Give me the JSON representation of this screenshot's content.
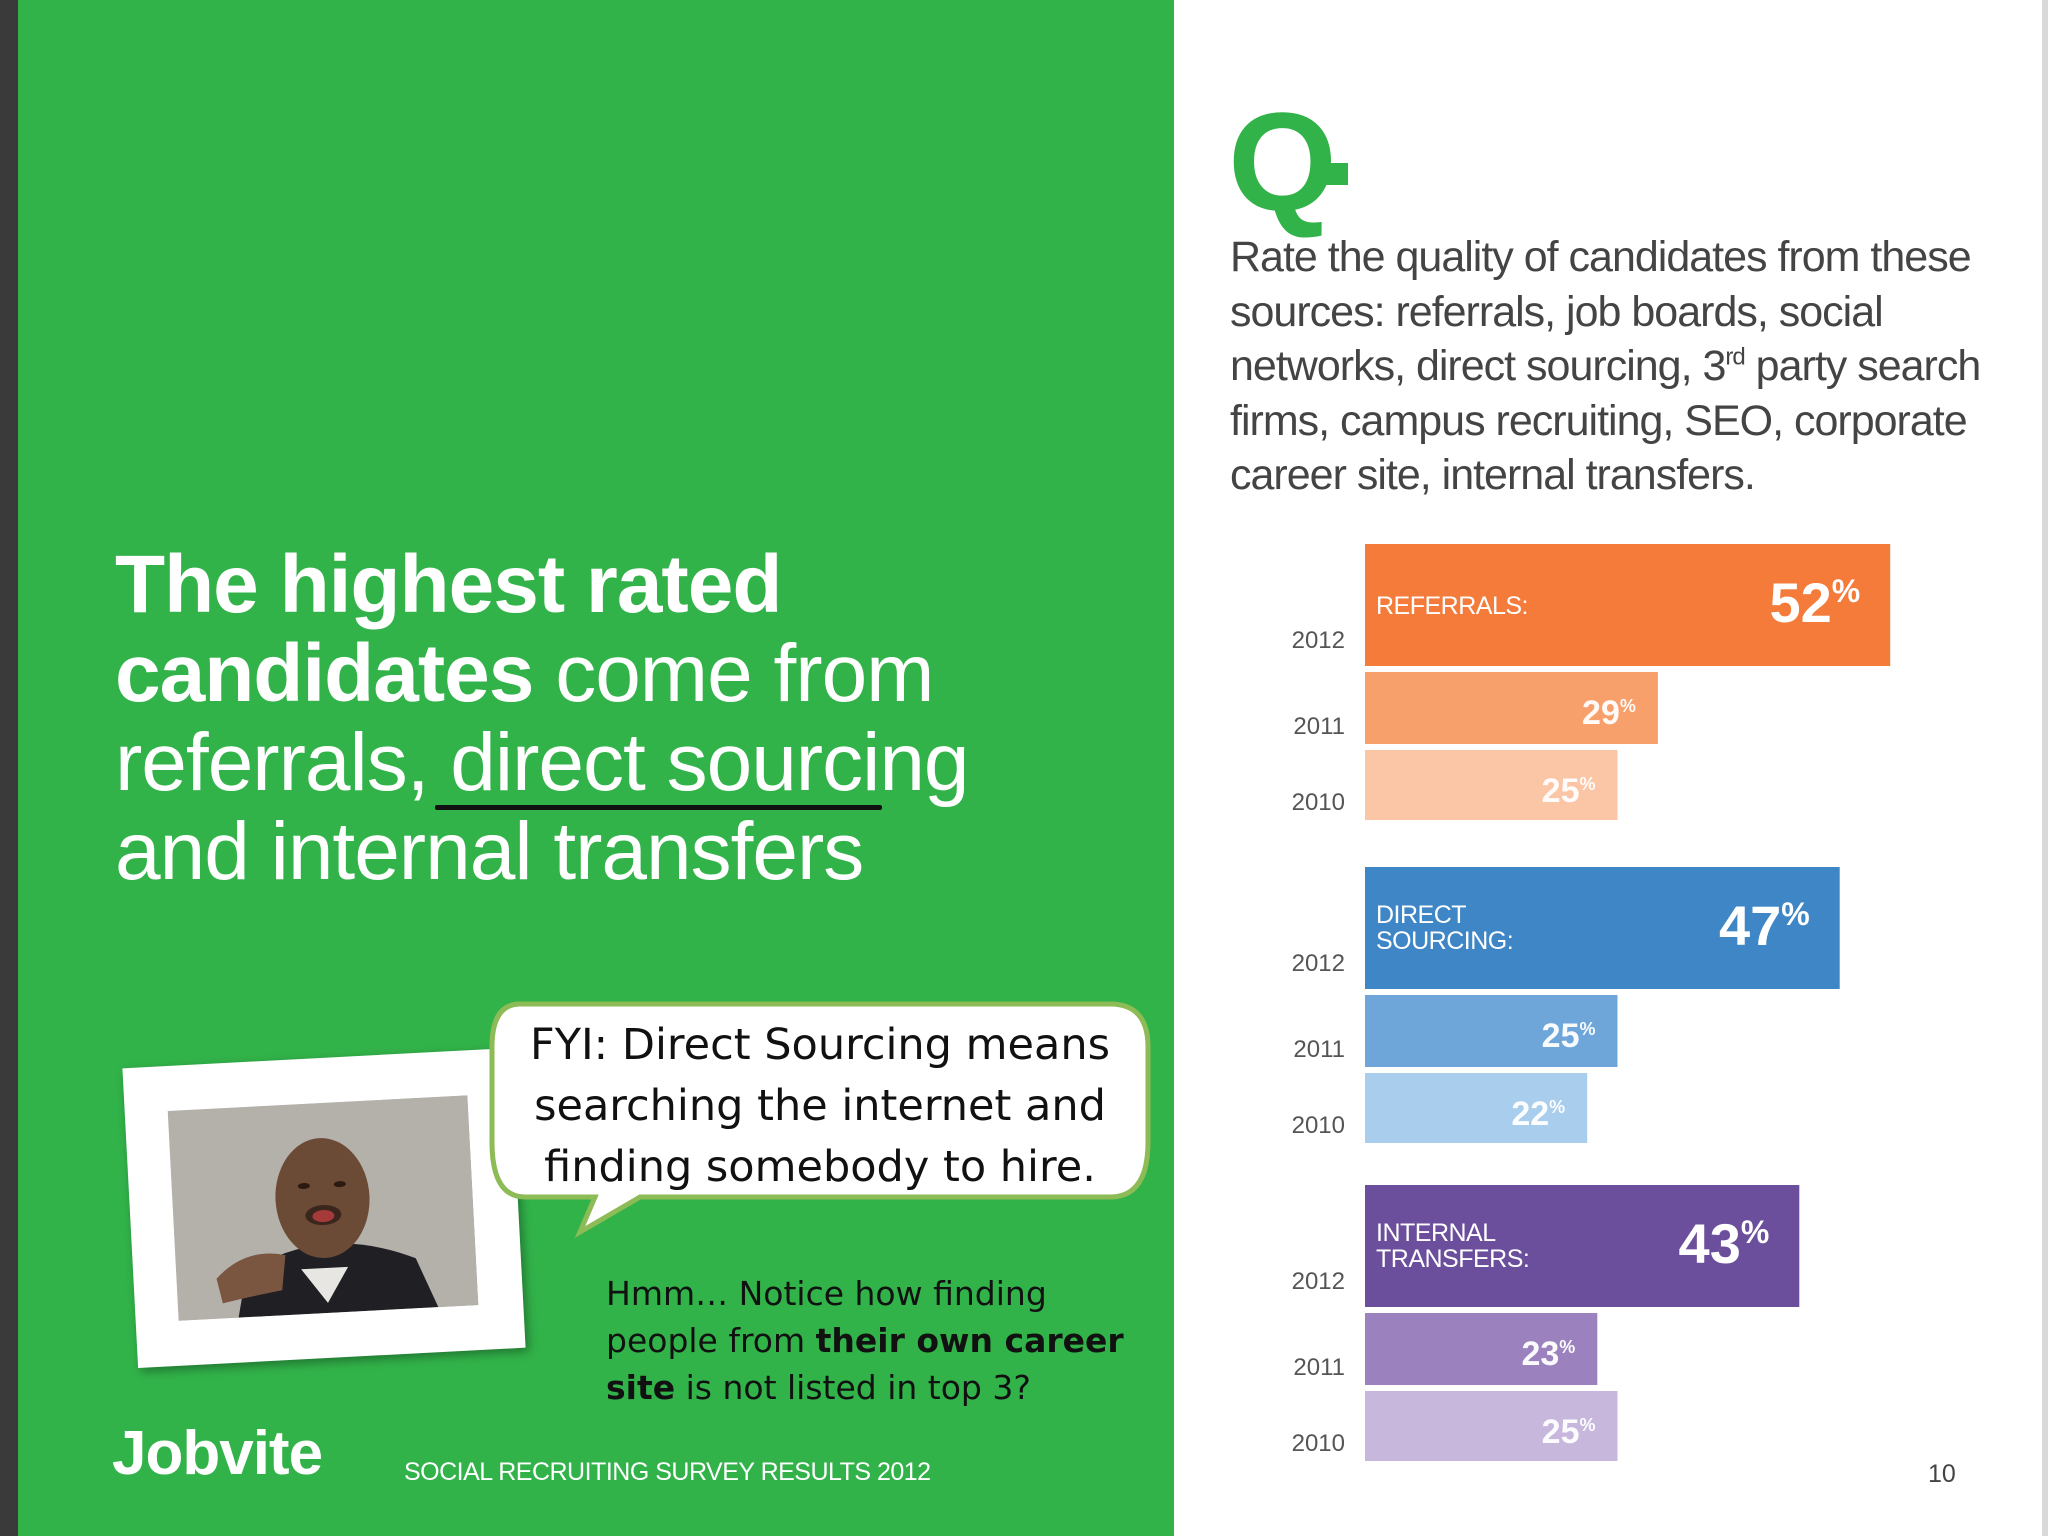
{
  "headline": {
    "bold_part": "The highest rated candidates",
    "regular_part": "come from referrals, direct sourcing and internal transfers"
  },
  "question": {
    "mark": "Q",
    "text_before_sup": "Rate the quality of candidates from these sources: referrals, job boards, social networks, direct sourcing, 3",
    "sup": "rd",
    "text_after_sup": " party search firms, campus recruiting, SEO, corporate career site, internal transfers."
  },
  "callout": {
    "text": "FYI: Direct Sourcing means searching the internet and finding somebody to hire."
  },
  "note": {
    "before": "Hmm… Notice how finding people from ",
    "bold": "their own career site",
    "after": " is not listed in top 3?"
  },
  "footer": {
    "brand": "Jobvite",
    "survey": "SOCIAL RECRUITING SURVEY RESULTS 2012",
    "page_number": "10"
  },
  "colors": {
    "green": "#32b34a",
    "referrals": [
      "#f47b3a",
      "#f8a06c",
      "#fbc6a6"
    ],
    "direct_sourcing": [
      "#3e86c6",
      "#6fa6da",
      "#a9cdec"
    ],
    "internal_transfers": [
      "#6b4f9c",
      "#9b82bf",
      "#c7b7dc"
    ]
  },
  "chart_data": {
    "type": "bar",
    "orientation": "horizontal",
    "unit": "%",
    "groups": [
      {
        "label_lines": [
          "REFERRALS:"
        ],
        "bars": [
          {
            "year": "2012",
            "value": 52
          },
          {
            "year": "2011",
            "value": 29
          },
          {
            "year": "2010",
            "value": 25
          }
        ]
      },
      {
        "label_lines": [
          "DIRECT",
          "SOURCING:"
        ],
        "bars": [
          {
            "year": "2012",
            "value": 47
          },
          {
            "year": "2011",
            "value": 25
          },
          {
            "year": "2010",
            "value": 22
          }
        ]
      },
      {
        "label_lines": [
          "INTERNAL",
          "TRANSFERS:"
        ],
        "bars": [
          {
            "year": "2012",
            "value": 43
          },
          {
            "year": "2011",
            "value": 23
          },
          {
            "year": "2010",
            "value": 25
          }
        ]
      }
    ]
  }
}
